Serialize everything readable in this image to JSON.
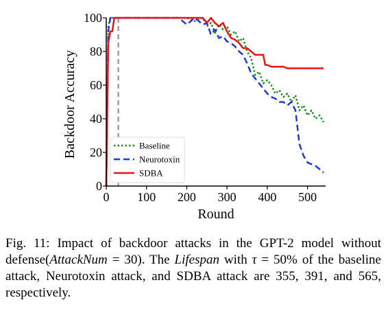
{
  "chart_data": {
    "type": "line",
    "xlabel": "Round",
    "ylabel": "Backdoor Accuracy",
    "xlim": [
      0,
      545
    ],
    "ylim": [
      0,
      100
    ],
    "xticks": [
      0,
      100,
      200,
      300,
      400,
      500
    ],
    "yticks": [
      0,
      20,
      40,
      60,
      80,
      100
    ],
    "vline_x": 30,
    "legend_position": "lower-left",
    "series": [
      {
        "name": "Baseline",
        "color": "#1a8a1a",
        "style": "dotted",
        "x": [
          0,
          5,
          10,
          15,
          20,
          200,
          220,
          240,
          250,
          260,
          270,
          280,
          290,
          300,
          310,
          320,
          330,
          340,
          350,
          360,
          370,
          380,
          390,
          400,
          410,
          420,
          430,
          440,
          450,
          460,
          470,
          480,
          490,
          500,
          510,
          520,
          530,
          540
        ],
        "y": [
          0,
          95,
          100,
          100,
          100,
          100,
          98,
          100,
          95,
          97,
          91,
          96,
          93,
          95,
          90,
          92,
          86,
          88,
          80,
          76,
          66,
          68,
          61,
          63,
          60,
          55,
          57,
          53,
          55,
          50,
          54,
          45,
          48,
          42,
          45,
          40,
          42,
          38
        ]
      },
      {
        "name": "Neurotoxin",
        "color": "#1c3ae0",
        "style": "dashed",
        "x": [
          0,
          5,
          10,
          15,
          20,
          180,
          200,
          220,
          240,
          250,
          260,
          270,
          280,
          290,
          300,
          310,
          320,
          330,
          340,
          350,
          360,
          370,
          380,
          390,
          400,
          410,
          420,
          430,
          440,
          450,
          460,
          470,
          475,
          480,
          490,
          500,
          510,
          520,
          530,
          540
        ],
        "y": [
          0,
          92,
          100,
          100,
          100,
          100,
          96,
          100,
          96,
          97,
          90,
          93,
          88,
          89,
          86,
          85,
          83,
          80,
          78,
          73,
          67,
          64,
          61,
          58,
          55,
          53,
          52,
          50,
          50,
          48,
          50,
          45,
          35,
          25,
          18,
          14,
          13,
          12,
          10,
          8
        ]
      },
      {
        "name": "SDBA",
        "color": "#ee1111",
        "style": "solid",
        "x": [
          0,
          5,
          10,
          15,
          20,
          240,
          250,
          260,
          270,
          280,
          290,
          300,
          310,
          320,
          330,
          340,
          350,
          360,
          370,
          380,
          390,
          395,
          400,
          410,
          420,
          430,
          440,
          450,
          460,
          470,
          480,
          490,
          500,
          510,
          520,
          530,
          540
        ],
        "y": [
          0,
          85,
          92,
          92,
          100,
          100,
          97,
          100,
          97,
          95,
          97,
          92,
          88,
          87,
          85,
          82,
          82,
          80,
          78,
          78,
          78,
          72,
          72,
          71,
          71,
          71,
          71,
          70,
          70,
          70,
          70,
          70,
          70,
          70,
          70,
          70,
          70
        ]
      }
    ]
  },
  "caption": {
    "label": "Fig. 11:",
    "text_1": "Impact of backdoor attacks in the GPT-2 model without defense(",
    "math_1": "AttackNum",
    "text_2": " = 30). The ",
    "math_2": "Lifespan",
    "text_3": " with ",
    "math_3": "τ",
    "text_4": " = 50% of the baseline attack, Neurotoxin attack, and SDBA attack are 355, 391, and 565, respectively."
  }
}
